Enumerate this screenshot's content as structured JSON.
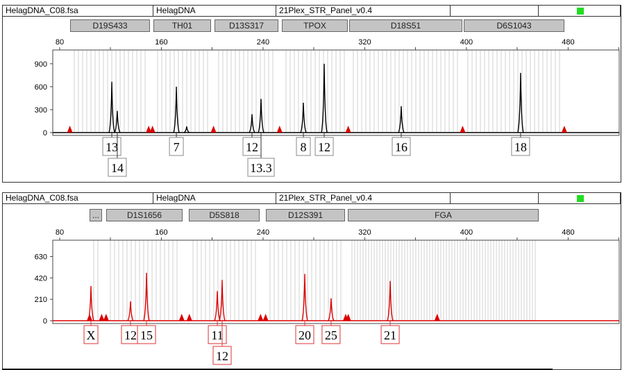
{
  "panels": [
    {
      "header": [
        "HelagDNA_C08.fsa",
        "HelagDNA",
        "21Plex_STR_Panel_v0.4",
        "",
        ""
      ],
      "status_color": "#22dd22",
      "markers": [
        "D19S433",
        "TH01",
        "D13S317",
        "TPOX",
        "D18S51",
        "D6S1043"
      ],
      "trace_color": "#000000"
    },
    {
      "header": [
        "HelagDNA_C08.fsa",
        "HelagDNA",
        "21Plex_STR_Panel_v0.4",
        "",
        ""
      ],
      "status_color": "#22dd22",
      "markers": [
        "...",
        "D1S1656",
        "D5S818",
        "D12S391",
        "FGA"
      ],
      "trace_color": "#dd0000"
    }
  ],
  "chart_data": [
    {
      "type": "line",
      "x_label_units": "bp",
      "xlim": [
        75,
        525
      ],
      "xticks": [
        80,
        160,
        240,
        320,
        400,
        480
      ],
      "ylim": [
        0,
        1080
      ],
      "yticks": [
        0,
        300,
        600,
        900
      ],
      "trace_color": "#000000",
      "peaks": [
        {
          "bp": 121.0,
          "height": 665,
          "allele": "13"
        },
        {
          "bp": 125.3,
          "height": 285,
          "allele": "14"
        },
        {
          "bp": 171.8,
          "height": 600,
          "allele": "7"
        },
        {
          "bp": 179.9,
          "height": 80,
          "allele": ""
        },
        {
          "bp": 231.3,
          "height": 240,
          "allele": "12"
        },
        {
          "bp": 238.4,
          "height": 440,
          "allele": "13.3"
        },
        {
          "bp": 271.7,
          "height": 390,
          "allele": "8"
        },
        {
          "bp": 288.1,
          "height": 900,
          "allele": "12"
        },
        {
          "bp": 348.7,
          "height": 345,
          "allele": "16"
        },
        {
          "bp": 442.6,
          "height": 780,
          "allele": "18"
        }
      ],
      "ladder_markers_bp": [
        88,
        150,
        153,
        201,
        253,
        307,
        397,
        477
      ]
    },
    {
      "type": "line",
      "x_label_units": "bp",
      "xlim": [
        75,
        525
      ],
      "xticks": [
        80,
        160,
        240,
        320,
        400,
        480
      ],
      "ylim": [
        0,
        790
      ],
      "yticks": [
        0,
        210,
        420,
        630
      ],
      "trace_color": "#dd0000",
      "peaks": [
        {
          "bp": 104.6,
          "height": 340,
          "allele": "X"
        },
        {
          "bp": 135.7,
          "height": 190,
          "allele": "12"
        },
        {
          "bp": 148.3,
          "height": 470,
          "allele": "15"
        },
        {
          "bp": 204.0,
          "height": 290,
          "allele": "11"
        },
        {
          "bp": 207.8,
          "height": 400,
          "allele": "12"
        },
        {
          "bp": 272.8,
          "height": 460,
          "allele": "20"
        },
        {
          "bp": 293.5,
          "height": 220,
          "allele": "25"
        },
        {
          "bp": 340.0,
          "height": 390,
          "allele": "21"
        }
      ],
      "ladder_markers_bp": [
        103.5,
        113,
        116.5,
        176,
        182,
        238,
        242,
        305,
        307,
        377
      ]
    }
  ]
}
